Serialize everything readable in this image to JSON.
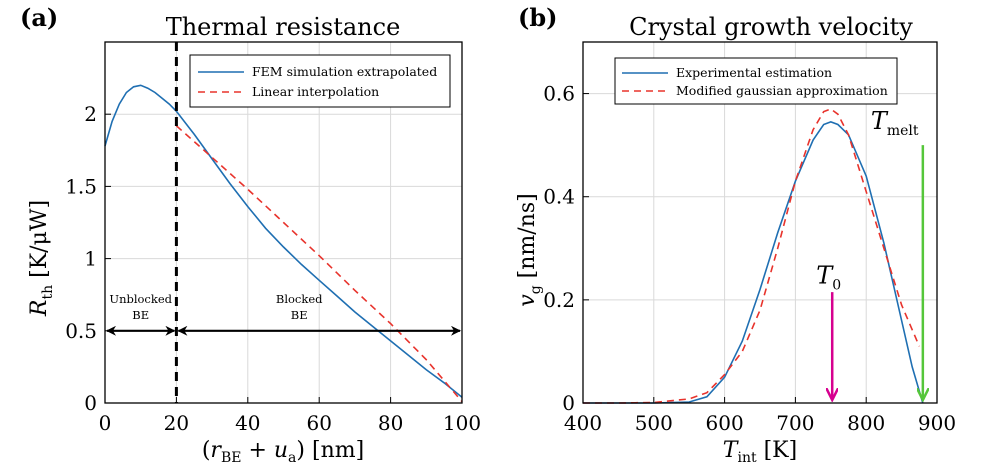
{
  "colors": {
    "blue": "#1f6fb2",
    "red": "#e8332c",
    "magenta": "#d6008f",
    "green": "#55c63a"
  },
  "chart_data": [
    {
      "type": "line",
      "panel": "(a)",
      "title": "Thermal resistance",
      "xlabel": "(r_BE + u_a) [nm]",
      "ylabel": "R_th [K/μW]",
      "xlim": [
        0,
        100
      ],
      "ylim": [
        0,
        2.5
      ],
      "xticks": [
        0,
        20,
        40,
        60,
        80,
        100
      ],
      "yticks": [
        0,
        0.5,
        1,
        1.5,
        2
      ],
      "ytick_labels": [
        "0",
        "0.5",
        "1",
        "1.5",
        "2"
      ],
      "grid": true,
      "legend_position": "top-right",
      "series": [
        {
          "name": "FEM simulation extrapolated",
          "color": "#1f6fb2",
          "style": "solid",
          "x": [
            0,
            2,
            4,
            6,
            8,
            10,
            12,
            14,
            16,
            18,
            20,
            25,
            30,
            35,
            40,
            45,
            50,
            55,
            60,
            65,
            70,
            75,
            80,
            85,
            90,
            95,
            100
          ],
          "y": [
            1.78,
            1.95,
            2.07,
            2.15,
            2.19,
            2.2,
            2.18,
            2.15,
            2.11,
            2.07,
            2.02,
            1.86,
            1.69,
            1.52,
            1.36,
            1.21,
            1.08,
            0.96,
            0.85,
            0.74,
            0.63,
            0.53,
            0.43,
            0.33,
            0.23,
            0.14,
            0.04
          ]
        },
        {
          "name": "Linear interpolation",
          "color": "#e8332c",
          "style": "dashed",
          "x": [
            20,
            30,
            40,
            50,
            60,
            70,
            80,
            90,
            100
          ],
          "y": [
            1.92,
            1.7,
            1.48,
            1.25,
            1.02,
            0.78,
            0.55,
            0.3,
            0.01
          ]
        }
      ],
      "annotations": {
        "vline_x": 20,
        "arrow_y": 0.5,
        "unblocked_line1": "Unblocked",
        "unblocked_line2": "BE",
        "blocked_line1": "Blocked",
        "blocked_line2": "BE"
      }
    },
    {
      "type": "line",
      "panel": "(b)",
      "title": "Crystal growth velocity",
      "xlabel": "T_int [K]",
      "ylabel": "v_g [nm/ns]",
      "xlim": [
        400,
        900
      ],
      "ylim": [
        0,
        0.7
      ],
      "xticks": [
        400,
        500,
        600,
        700,
        800,
        900
      ],
      "yticks": [
        0,
        0.2,
        0.4,
        0.6
      ],
      "ytick_labels": [
        "0",
        "0.2",
        "0.4",
        "0.6"
      ],
      "grid": true,
      "legend_position": "top-left",
      "series": [
        {
          "name": "Experimental estimation",
          "color": "#1f6fb2",
          "style": "solid",
          "x": [
            400,
            450,
            500,
            550,
            575,
            600,
            625,
            650,
            675,
            700,
            725,
            740,
            750,
            760,
            775,
            800,
            825,
            850,
            865,
            880
          ],
          "y": [
            0,
            0,
            0,
            0.002,
            0.012,
            0.05,
            0.12,
            0.22,
            0.33,
            0.43,
            0.51,
            0.54,
            0.545,
            0.54,
            0.52,
            0.44,
            0.31,
            0.16,
            0.07,
            0
          ]
        },
        {
          "name": "Modified gaussian approximation",
          "color": "#e8332c",
          "style": "dashed",
          "x": [
            400,
            450,
            500,
            550,
            575,
            600,
            625,
            650,
            675,
            700,
            725,
            740,
            750,
            760,
            775,
            800,
            825,
            850,
            875
          ],
          "y": [
            0,
            0,
            0.001,
            0.008,
            0.02,
            0.055,
            0.1,
            0.18,
            0.3,
            0.43,
            0.53,
            0.565,
            0.57,
            0.56,
            0.52,
            0.41,
            0.3,
            0.19,
            0.11
          ]
        }
      ],
      "annotations": {
        "t0_label": "T",
        "t0_sub": "0",
        "t0_x": 752,
        "tmelt_label": "T",
        "tmelt_sub": "melt",
        "tmelt_x": 880
      }
    }
  ]
}
